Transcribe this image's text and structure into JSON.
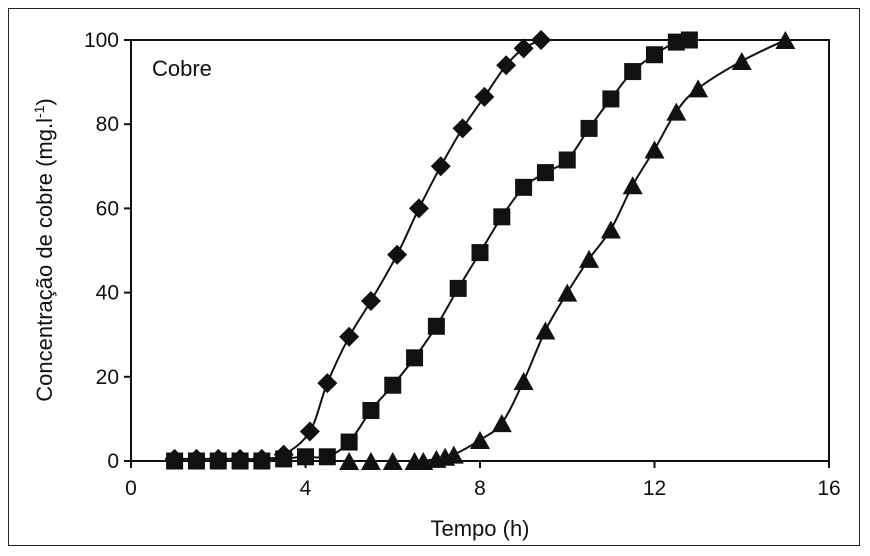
{
  "chart_data": {
    "type": "scatter",
    "annotation": "Cobre",
    "xlabel": "Tempo (h)",
    "ylabel": "Concentração de cobre (mg.l",
    "ylabel_sup": "-1",
    "ylabel_end": ")",
    "xlim": [
      0,
      16
    ],
    "ylim": [
      0,
      100
    ],
    "xticks": [
      0,
      4,
      8,
      12,
      16
    ],
    "yticks": [
      0,
      20,
      40,
      60,
      80,
      100
    ],
    "grid": false,
    "series": [
      {
        "marker": "diamond",
        "x": [
          1.0,
          1.5,
          2.0,
          2.5,
          3.0,
          3.5,
          4.1,
          4.5,
          5.0,
          5.5,
          6.1,
          6.6,
          7.1,
          7.6,
          8.1,
          8.6,
          9.0,
          9.4
        ],
        "y": [
          0.5,
          0.5,
          0.5,
          0.5,
          0.5,
          1.5,
          7,
          18.5,
          29.5,
          38,
          49,
          60,
          70,
          79,
          86.5,
          94,
          98,
          100
        ]
      },
      {
        "marker": "square",
        "x": [
          1.0,
          1.5,
          2.0,
          2.5,
          3.0,
          3.5,
          4.0,
          4.5,
          5.0,
          5.5,
          6.0,
          6.5,
          7.0,
          7.5,
          8.0,
          8.5,
          9.0,
          9.5,
          10.0,
          10.5,
          11.0,
          11.5,
          12.0,
          12.5,
          12.8
        ],
        "y": [
          0,
          0,
          0,
          0,
          0,
          0.5,
          1,
          1,
          4.5,
          12,
          18,
          24.5,
          32,
          41,
          49.5,
          58,
          65,
          68.5,
          71.5,
          79,
          86,
          92.5,
          96.5,
          99.5,
          100
        ]
      },
      {
        "marker": "triangle",
        "x": [
          5.0,
          5.5,
          6.0,
          6.5,
          6.7,
          7.0,
          7.2,
          7.4,
          8.0,
          8.5,
          9.0,
          9.5,
          10.0,
          10.5,
          11.0,
          11.5,
          12.0,
          12.5,
          13.0,
          14.0,
          15.0
        ],
        "y": [
          0,
          0,
          0,
          0,
          0,
          0.5,
          1,
          1.5,
          5,
          9,
          19,
          31,
          40,
          48,
          55,
          65.5,
          74,
          83,
          88.5,
          95,
          100
        ]
      }
    ]
  }
}
